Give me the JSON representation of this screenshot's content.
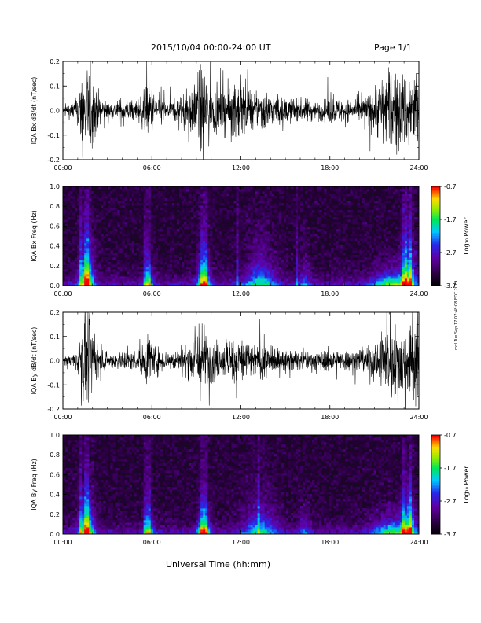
{
  "header": {
    "date_range": "2015/10/04   00:00-24:00 UT",
    "page": "Page 1/1"
  },
  "side_stamp": "mxl Tue Sep 17 07:48:08 EDT 2019",
  "xlabel": "Universal Time (hh:mm)",
  "chart_data": [
    {
      "type": "line",
      "ylabel": "IQA Bx dB/dt (nT/sec)",
      "x_ticks": [
        "00:00",
        "06:00",
        "12:00",
        "18:00",
        "24:00"
      ],
      "xlim_hours": [
        0,
        24
      ],
      "ylim": [
        -0.2,
        0.2
      ],
      "y_ticks": [
        "-0.2",
        "-0.1",
        "0.0",
        "0.1",
        "0.2"
      ],
      "series": [
        {
          "x_hours": [
            0,
            0.5,
            1,
            1.3,
            1.5,
            1.8,
            2.2,
            2.7,
            3,
            3.5,
            4,
            4.5,
            5,
            5.5,
            5.8,
            6.2,
            6.6,
            7,
            7.5,
            8,
            8.5,
            9,
            9.3,
            9.6,
            10,
            10.5,
            11,
            11.5,
            12,
            12.5,
            13,
            13.5,
            14,
            14.5,
            15,
            15.5,
            16,
            16.5,
            17,
            17.5,
            18,
            18.5,
            19,
            19.5,
            20,
            20.5,
            21,
            21.5,
            22,
            22.5,
            23,
            23.5,
            24
          ],
          "envelope": [
            0.03,
            0.04,
            0.07,
            0.22,
            0.25,
            0.22,
            0.12,
            0.06,
            0.05,
            0.04,
            0.07,
            0.05,
            0.06,
            0.1,
            0.16,
            0.08,
            0.08,
            0.05,
            0.05,
            0.08,
            0.12,
            0.16,
            0.22,
            0.22,
            0.12,
            0.1,
            0.12,
            0.13,
            0.16,
            0.1,
            0.09,
            0.12,
            0.08,
            0.07,
            0.06,
            0.06,
            0.06,
            0.06,
            0.05,
            0.05,
            0.07,
            0.06,
            0.06,
            0.05,
            0.06,
            0.08,
            0.12,
            0.18,
            0.2,
            0.19,
            0.2,
            0.21,
            0.22
          ]
        }
      ]
    },
    {
      "type": "heatmap",
      "ylabel": "IQA Bx Freq (Hz)",
      "x_ticks": [
        "00:00",
        "06:00",
        "12:00",
        "18:00",
        "24:00"
      ],
      "xlim_hours": [
        0,
        24
      ],
      "ylim": [
        0.0,
        1.0
      ],
      "y_ticks": [
        "0.0",
        "0.2",
        "0.4",
        "0.6",
        "0.8",
        "1.0"
      ],
      "colorbar": {
        "label": "Log₁₀ Power",
        "ticks": [
          "-0.7",
          "-1.7",
          "-2.7",
          "-3.7"
        ],
        "range": [
          -3.7,
          -0.7
        ]
      },
      "bright_columns_hours": [
        1.2,
        1.5,
        1.7,
        5.6,
        5.8,
        9.3,
        9.5,
        9.7,
        11.8,
        15.8,
        22.9,
        23.1,
        23.4
      ],
      "band_peaks": [
        {
          "center_hours": 1.6,
          "width_hours": 0.7,
          "height_hz": 0.35,
          "strength": 1.0
        },
        {
          "center_hours": 5.8,
          "width_hours": 0.5,
          "height_hz": 0.15,
          "strength": 0.6
        },
        {
          "center_hours": 9.5,
          "width_hours": 0.6,
          "height_hz": 0.25,
          "strength": 0.9
        },
        {
          "center_hours": 13.3,
          "width_hours": 1.5,
          "height_hz": 0.3,
          "strength": 0.55
        },
        {
          "center_hours": 16.3,
          "width_hours": 0.6,
          "height_hz": 0.25,
          "strength": 0.35
        },
        {
          "center_hours": 22.2,
          "width_hours": 1.8,
          "height_hz": 0.15,
          "strength": 0.7
        },
        {
          "center_hours": 23.3,
          "width_hours": 0.6,
          "height_hz": 0.4,
          "strength": 0.8
        }
      ]
    },
    {
      "type": "line",
      "ylabel": "IQA By dB/dt (nT/sec)",
      "x_ticks": [
        "00:00",
        "06:00",
        "12:00",
        "18:00",
        "24:00"
      ],
      "xlim_hours": [
        0,
        24
      ],
      "ylim": [
        -0.2,
        0.2
      ],
      "y_ticks": [
        "-0.2",
        "-0.1",
        "0.0",
        "0.1",
        "0.2"
      ],
      "series": [
        {
          "x_hours": [
            0,
            0.5,
            1,
            1.3,
            1.5,
            1.8,
            2.2,
            2.7,
            3,
            3.5,
            4,
            4.5,
            5,
            5.5,
            5.8,
            6.2,
            6.6,
            7,
            7.5,
            8,
            8.5,
            9,
            9.3,
            9.6,
            10,
            10.5,
            11,
            11.5,
            12,
            12.5,
            13,
            13.5,
            14,
            14.5,
            15,
            15.5,
            16,
            16.5,
            17,
            17.5,
            18,
            18.5,
            19,
            19.5,
            20,
            20.5,
            21,
            21.5,
            22,
            22.5,
            23,
            23.5,
            24
          ],
          "envelope": [
            0.02,
            0.03,
            0.06,
            0.22,
            0.25,
            0.2,
            0.1,
            0.05,
            0.04,
            0.04,
            0.05,
            0.05,
            0.05,
            0.09,
            0.18,
            0.08,
            0.06,
            0.05,
            0.05,
            0.06,
            0.09,
            0.14,
            0.2,
            0.18,
            0.12,
            0.09,
            0.1,
            0.11,
            0.14,
            0.1,
            0.08,
            0.1,
            0.07,
            0.06,
            0.05,
            0.05,
            0.05,
            0.05,
            0.05,
            0.05,
            0.06,
            0.05,
            0.06,
            0.05,
            0.06,
            0.07,
            0.1,
            0.15,
            0.19,
            0.2,
            0.2,
            0.22,
            0.2
          ]
        }
      ]
    },
    {
      "type": "heatmap",
      "ylabel": "IQA By Freq (Hz)",
      "x_ticks": [
        "00:00",
        "06:00",
        "12:00",
        "18:00",
        "24:00"
      ],
      "xlim_hours": [
        0,
        24
      ],
      "ylim": [
        0.0,
        1.0
      ],
      "y_ticks": [
        "0.0",
        "0.2",
        "0.4",
        "0.6",
        "0.8",
        "1.0"
      ],
      "colorbar": {
        "label": "Log₁₀ Power",
        "ticks": [
          "-0.7",
          "-1.7",
          "-2.7",
          "-3.7"
        ],
        "range": [
          -3.7,
          -0.7
        ]
      },
      "bright_columns_hours": [
        1.2,
        1.5,
        1.7,
        5.6,
        5.8,
        9.3,
        9.5,
        9.7,
        13.2,
        22.9,
        23.4
      ],
      "band_peaks": [
        {
          "center_hours": 1.6,
          "width_hours": 0.7,
          "height_hz": 0.3,
          "strength": 1.0
        },
        {
          "center_hours": 5.8,
          "width_hours": 0.5,
          "height_hz": 0.15,
          "strength": 0.65
        },
        {
          "center_hours": 9.5,
          "width_hours": 0.6,
          "height_hz": 0.2,
          "strength": 0.9
        },
        {
          "center_hours": 13.3,
          "width_hours": 1.6,
          "height_hz": 0.3,
          "strength": 0.55
        },
        {
          "center_hours": 16.3,
          "width_hours": 0.6,
          "height_hz": 0.2,
          "strength": 0.3
        },
        {
          "center_hours": 22.2,
          "width_hours": 1.8,
          "height_hz": 0.15,
          "strength": 0.7
        },
        {
          "center_hours": 23.3,
          "width_hours": 0.6,
          "height_hz": 0.35,
          "strength": 0.8
        }
      ]
    }
  ]
}
